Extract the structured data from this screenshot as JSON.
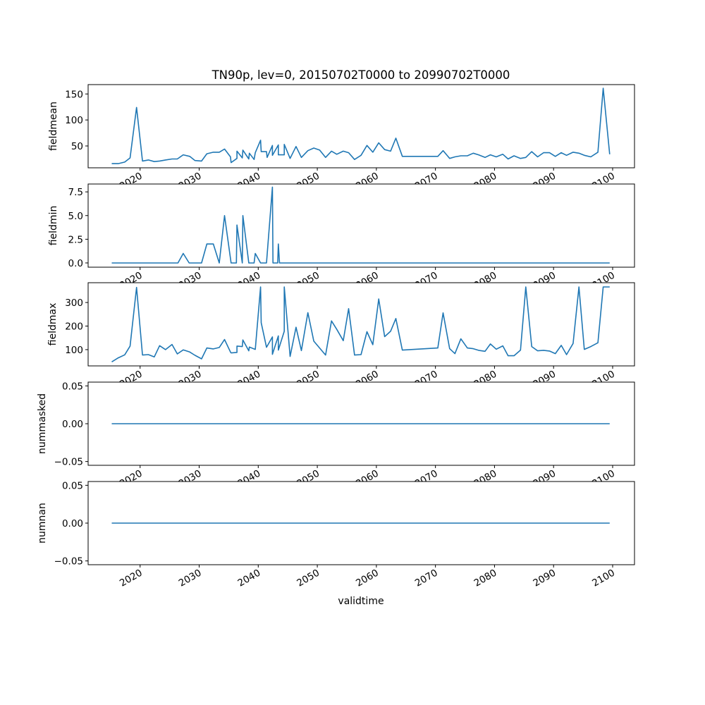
{
  "chart_data": {
    "type": "line",
    "title": "TN90p, lev=0, 20150702T0000 to 20990702T0000",
    "xlabel": "validtime",
    "xlim": [
      2011.2,
      2103.7
    ],
    "xticks": [
      2020,
      2030,
      2040,
      2050,
      2060,
      2070,
      2080,
      2090,
      2100
    ],
    "xtick_labels": [
      "2020",
      "2030",
      "2040",
      "2050",
      "2060",
      "2070",
      "2080",
      "2090",
      "2100"
    ],
    "line_color": "#1f77b4",
    "grid": false,
    "subplots": [
      {
        "ylabel": "fieldmean",
        "ylim": [
          8,
          168
        ],
        "yticks": [
          50,
          100,
          150
        ],
        "ytick_labels": [
          "50",
          "100",
          "150"
        ],
        "points": [
          [
            2015.2,
            16
          ],
          [
            2016.3,
            16
          ],
          [
            2017.4,
            19
          ],
          [
            2018.3,
            27
          ],
          [
            2019.4,
            124
          ],
          [
            2020.4,
            21
          ],
          [
            2021.4,
            23
          ],
          [
            2022.4,
            20
          ],
          [
            2023.3,
            21
          ],
          [
            2024.3,
            23
          ],
          [
            2025.4,
            25
          ],
          [
            2026.3,
            25
          ],
          [
            2027.3,
            33
          ],
          [
            2028.4,
            30
          ],
          [
            2029.3,
            22
          ],
          [
            2030.4,
            21
          ],
          [
            2031.3,
            35
          ],
          [
            2032.4,
            38
          ],
          [
            2033.4,
            38
          ],
          [
            2034.3,
            44
          ],
          [
            2035.3,
            29
          ],
          [
            2035.4,
            18
          ],
          [
            2036.4,
            26
          ],
          [
            2036.4,
            40
          ],
          [
            2037.3,
            27
          ],
          [
            2037.4,
            42
          ],
          [
            2038.4,
            25
          ],
          [
            2038.5,
            36
          ],
          [
            2039.3,
            24
          ],
          [
            2039.5,
            37
          ],
          [
            2040.4,
            61
          ],
          [
            2040.5,
            39
          ],
          [
            2041.4,
            39
          ],
          [
            2041.5,
            28
          ],
          [
            2042.4,
            51
          ],
          [
            2042.4,
            32
          ],
          [
            2043.4,
            52
          ],
          [
            2043.4,
            33
          ],
          [
            2044.4,
            33
          ],
          [
            2044.4,
            53
          ],
          [
            2045.4,
            26
          ],
          [
            2046.4,
            49
          ],
          [
            2047.3,
            28
          ],
          [
            2048.4,
            41
          ],
          [
            2049.4,
            46
          ],
          [
            2050.4,
            42
          ],
          [
            2051.4,
            28
          ],
          [
            2052.4,
            40
          ],
          [
            2053.3,
            34
          ],
          [
            2054.4,
            40
          ],
          [
            2055.3,
            37
          ],
          [
            2056.3,
            24
          ],
          [
            2057.4,
            32
          ],
          [
            2058.4,
            51
          ],
          [
            2059.4,
            38
          ],
          [
            2060.4,
            56
          ],
          [
            2061.4,
            43
          ],
          [
            2062.4,
            40
          ],
          [
            2063.3,
            65
          ],
          [
            2064.4,
            30
          ],
          [
            2070.4,
            30
          ],
          [
            2071.3,
            41
          ],
          [
            2072.4,
            26
          ],
          [
            2073.3,
            29
          ],
          [
            2074.3,
            31
          ],
          [
            2075.4,
            31
          ],
          [
            2076.4,
            36
          ],
          [
            2077.3,
            33
          ],
          [
            2078.4,
            28
          ],
          [
            2079.3,
            33
          ],
          [
            2080.3,
            29
          ],
          [
            2081.4,
            34
          ],
          [
            2082.3,
            25
          ],
          [
            2083.3,
            31
          ],
          [
            2084.4,
            26
          ],
          [
            2085.3,
            28
          ],
          [
            2086.3,
            39
          ],
          [
            2087.3,
            29
          ],
          [
            2088.3,
            37
          ],
          [
            2089.3,
            37
          ],
          [
            2090.3,
            30
          ],
          [
            2091.3,
            37
          ],
          [
            2092.2,
            32
          ],
          [
            2093.3,
            38
          ],
          [
            2094.3,
            36
          ],
          [
            2095.2,
            32
          ],
          [
            2096.3,
            29
          ],
          [
            2097.5,
            38
          ],
          [
            2098.4,
            161
          ],
          [
            2099.5,
            34
          ]
        ]
      },
      {
        "ylabel": "fieldmin",
        "ylim": [
          -0.45,
          8.33
        ],
        "yticks": [
          0,
          2.5,
          5,
          7.5
        ],
        "ytick_labels": [
          "0.0",
          "2.5",
          "5.0",
          "7.5"
        ],
        "points": [
          [
            2015.2,
            0
          ],
          [
            2026.4,
            0
          ],
          [
            2027.3,
            1
          ],
          [
            2028.3,
            0
          ],
          [
            2030.4,
            0
          ],
          [
            2031.3,
            2
          ],
          [
            2032.4,
            2
          ],
          [
            2033.4,
            0
          ],
          [
            2034.3,
            5
          ],
          [
            2035.4,
            0
          ],
          [
            2036.3,
            0
          ],
          [
            2036.4,
            4
          ],
          [
            2037.3,
            0
          ],
          [
            2037.4,
            5
          ],
          [
            2038.4,
            0
          ],
          [
            2039.3,
            0
          ],
          [
            2039.5,
            1
          ],
          [
            2040.4,
            0
          ],
          [
            2041.4,
            0
          ],
          [
            2042.4,
            8
          ],
          [
            2042.5,
            0
          ],
          [
            2043.3,
            0
          ],
          [
            2043.4,
            2
          ],
          [
            2043.6,
            0
          ],
          [
            2099.5,
            0
          ]
        ]
      },
      {
        "ylabel": "fieldmax",
        "ylim": [
          31,
          384
        ],
        "yticks": [
          100,
          200,
          300
        ],
        "ytick_labels": [
          "100",
          "200",
          "300"
        ],
        "points": [
          [
            2015.2,
            48
          ],
          [
            2016.3,
            65
          ],
          [
            2017.4,
            78
          ],
          [
            2018.3,
            115
          ],
          [
            2019.4,
            364
          ],
          [
            2020.4,
            77
          ],
          [
            2021.4,
            79
          ],
          [
            2022.4,
            69
          ],
          [
            2023.3,
            117
          ],
          [
            2024.3,
            100
          ],
          [
            2025.4,
            122
          ],
          [
            2026.3,
            82
          ],
          [
            2027.3,
            99
          ],
          [
            2028.4,
            90
          ],
          [
            2029.3,
            76
          ],
          [
            2030.4,
            61
          ],
          [
            2031.3,
            107
          ],
          [
            2032.4,
            103
          ],
          [
            2033.4,
            109
          ],
          [
            2034.3,
            143
          ],
          [
            2035.3,
            90
          ],
          [
            2035.4,
            86
          ],
          [
            2036.4,
            88
          ],
          [
            2036.4,
            115
          ],
          [
            2037.3,
            113
          ],
          [
            2037.4,
            141
          ],
          [
            2038.4,
            95
          ],
          [
            2038.5,
            111
          ],
          [
            2039.5,
            101
          ],
          [
            2040.4,
            366
          ],
          [
            2040.5,
            214
          ],
          [
            2041.4,
            110
          ],
          [
            2042.4,
            154
          ],
          [
            2042.4,
            80
          ],
          [
            2043.4,
            158
          ],
          [
            2043.4,
            98
          ],
          [
            2044.4,
            178
          ],
          [
            2044.4,
            366
          ],
          [
            2045.4,
            71
          ],
          [
            2046.4,
            195
          ],
          [
            2047.3,
            96
          ],
          [
            2048.4,
            257
          ],
          [
            2049.4,
            136
          ],
          [
            2051.4,
            77
          ],
          [
            2052.4,
            222
          ],
          [
            2053.3,
            186
          ],
          [
            2054.4,
            138
          ],
          [
            2055.3,
            274
          ],
          [
            2056.3,
            77
          ],
          [
            2057.4,
            79
          ],
          [
            2058.4,
            176
          ],
          [
            2059.4,
            121
          ],
          [
            2060.4,
            315
          ],
          [
            2061.4,
            155
          ],
          [
            2062.4,
            178
          ],
          [
            2063.3,
            232
          ],
          [
            2064.4,
            98
          ],
          [
            2070.4,
            107
          ],
          [
            2071.3,
            256
          ],
          [
            2072.4,
            104
          ],
          [
            2073.3,
            83
          ],
          [
            2074.3,
            146
          ],
          [
            2075.4,
            107
          ],
          [
            2076.4,
            104
          ],
          [
            2077.3,
            97
          ],
          [
            2078.4,
            93
          ],
          [
            2079.3,
            124
          ],
          [
            2080.3,
            102
          ],
          [
            2081.4,
            116
          ],
          [
            2082.3,
            74
          ],
          [
            2083.3,
            74
          ],
          [
            2084.4,
            98
          ],
          [
            2085.3,
            366
          ],
          [
            2086.3,
            113
          ],
          [
            2087.3,
            95
          ],
          [
            2088.3,
            97
          ],
          [
            2089.3,
            94
          ],
          [
            2090.3,
            83
          ],
          [
            2091.3,
            118
          ],
          [
            2092.2,
            79
          ],
          [
            2093.3,
            126
          ],
          [
            2094.3,
            366
          ],
          [
            2095.2,
            101
          ],
          [
            2096.3,
            113
          ],
          [
            2097.5,
            129
          ],
          [
            2098.4,
            366
          ],
          [
            2099.5,
            366
          ]
        ]
      },
      {
        "ylabel": "nummasked",
        "ylim": [
          -0.055,
          0.055
        ],
        "yticks": [
          -0.05,
          0,
          0.05
        ],
        "ytick_labels": [
          "−0.05",
          "0.00",
          "0.05"
        ],
        "points": [
          [
            2015.2,
            0
          ],
          [
            2099.5,
            0
          ]
        ]
      },
      {
        "ylabel": "numnan",
        "ylim": [
          -0.055,
          0.055
        ],
        "yticks": [
          -0.05,
          0,
          0.05
        ],
        "ytick_labels": [
          "−0.05",
          "0.00",
          "0.05"
        ],
        "points": [
          [
            2015.2,
            0
          ],
          [
            2099.5,
            0
          ]
        ]
      }
    ]
  }
}
